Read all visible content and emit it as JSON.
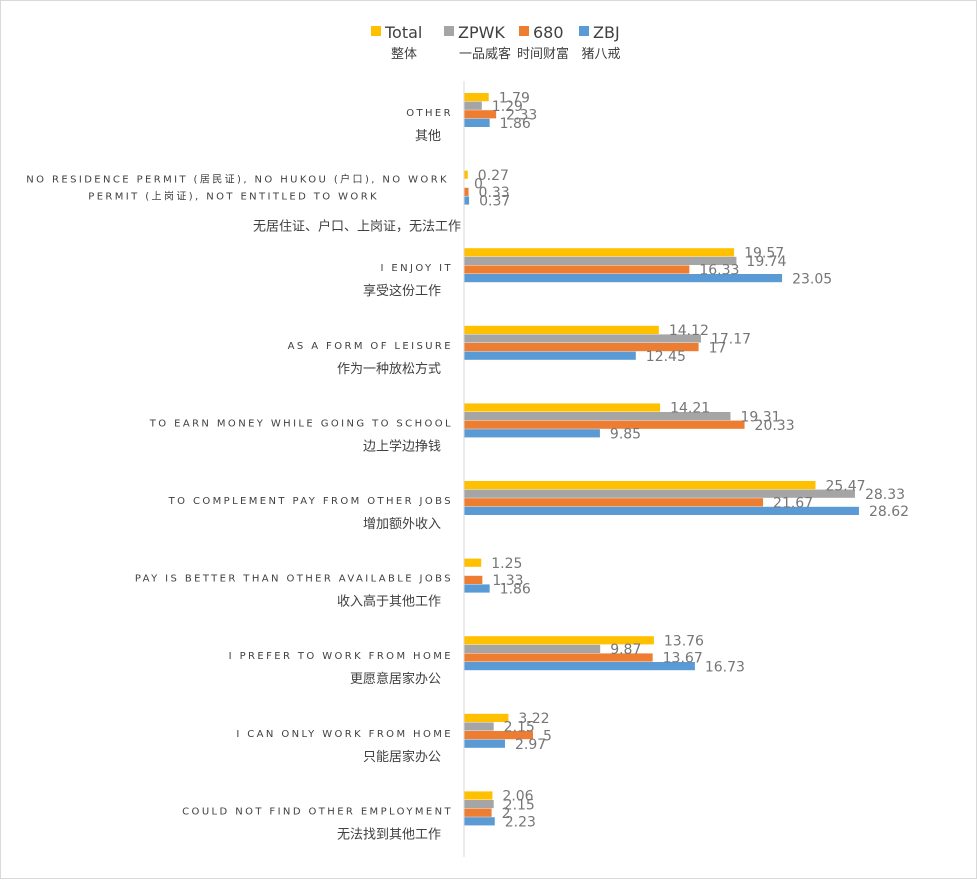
{
  "chart_data": {
    "type": "bar",
    "orientation": "horizontal",
    "title": "",
    "xlabel": "",
    "ylabel": "",
    "legend_position": "top",
    "grid": false,
    "xlim": [
      0,
      32
    ],
    "series": [
      {
        "name": "Total",
        "name_zh": "整体",
        "color": "#FFC000",
        "values": [
          1.79,
          0.27,
          19.57,
          14.12,
          14.21,
          25.47,
          1.25,
          13.76,
          3.22,
          2.06
        ]
      },
      {
        "name": "ZPWK",
        "name_zh": "一品威客",
        "color": "#A5A5A5",
        "values": [
          1.29,
          0,
          19.74,
          17.17,
          19.31,
          28.33,
          0,
          9.87,
          2.15,
          2.15
        ]
      },
      {
        "name": "680",
        "name_zh": "时间财富",
        "color": "#ED7D31",
        "values": [
          2.33,
          0.33,
          16.33,
          17,
          20.33,
          21.67,
          1.33,
          13.67,
          5,
          2
        ]
      },
      {
        "name": "ZBJ",
        "name_zh": "猪八戒",
        "color": "#5B9BD5",
        "values": [
          1.86,
          0.37,
          23.05,
          12.45,
          9.85,
          28.62,
          1.86,
          16.73,
          2.97,
          2.23
        ]
      }
    ],
    "value_labels": [
      [
        "1.79",
        "0.27",
        "19.57",
        "14.12",
        "14.21",
        "25.47",
        "1.25",
        "13.76",
        "3.22",
        "2.06"
      ],
      [
        "1.29",
        "0",
        "19.74",
        "17.17",
        "19.31",
        "28.33",
        "",
        "9.87",
        "2.15",
        "2.15"
      ],
      [
        "2.33",
        "0.33",
        "16.33",
        "17",
        "20.33",
        "21.67",
        "1.33",
        "13.67",
        "5",
        "2"
      ],
      [
        "1.86",
        "0.37",
        "23.05",
        "12.45",
        "9.85",
        "28.62",
        "1.86",
        "16.73",
        "2.97",
        "2.23"
      ]
    ],
    "categories": [
      {
        "en": [
          "OTHER"
        ],
        "zh": "其他"
      },
      {
        "en": [
          "NO RESIDENCE PERMIT (居民证), NO HUKOU (户口), NO WORK",
          "PERMIT (上岗证), NOT ENTITLED TO WORK"
        ],
        "zh": "无居住证、户口、上岗证，无法工作"
      },
      {
        "en": [
          "I ENJOY IT"
        ],
        "zh": "享受这份工作"
      },
      {
        "en": [
          "AS A FORM OF LEISURE"
        ],
        "zh": "作为一种放松方式"
      },
      {
        "en": [
          "TO EARN MONEY WHILE GOING TO SCHOOL"
        ],
        "zh": "边上学边挣钱"
      },
      {
        "en": [
          "TO COMPLEMENT PAY FROM OTHER JOBS"
        ],
        "zh": "增加额外收入"
      },
      {
        "en": [
          "PAY IS BETTER THAN OTHER AVAILABLE JOBS"
        ],
        "zh": "收入高于其他工作"
      },
      {
        "en": [
          "I PREFER TO WORK FROM HOME"
        ],
        "zh": "更愿意居家办公"
      },
      {
        "en": [
          "I CAN ONLY WORK FROM HOME"
        ],
        "zh": "只能居家办公"
      },
      {
        "en": [
          "COULD NOT FIND OTHER EMPLOYMENT"
        ],
        "zh": "无法找到其他工作"
      }
    ]
  }
}
